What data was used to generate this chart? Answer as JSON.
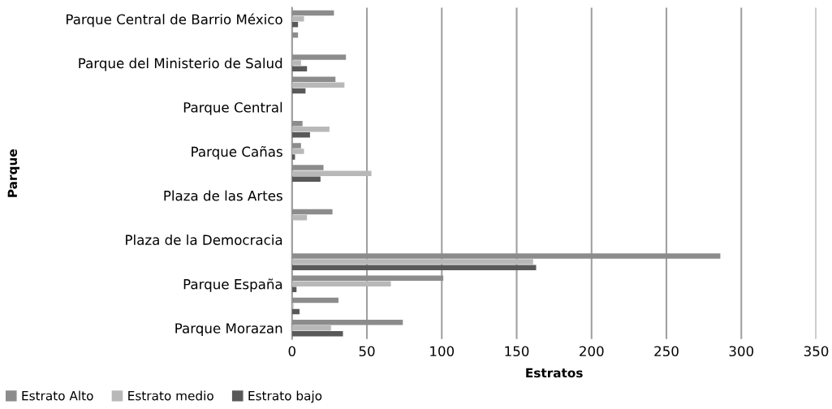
{
  "chart_data": {
    "type": "bar",
    "orientation": "horizontal",
    "xlabel": "Estratos",
    "ylabel": "Parque",
    "categories": [
      "Parque Central de Barrio México",
      null,
      "Parque del Ministerio de Salud",
      null,
      "Parque Central",
      null,
      "Parque Cañas",
      null,
      "Plaza de las Artes",
      null,
      "Plaza de la Democracia",
      null,
      "Parque España",
      null,
      "Parque Morazan"
    ],
    "series": [
      {
        "name": "Estrato Alto",
        "color": "#8c8c8c",
        "values": [
          28,
          4,
          36,
          29,
          0,
          7,
          6,
          21,
          0,
          27,
          0,
          286,
          101,
          31,
          74
        ]
      },
      {
        "name": "Estrato medio",
        "color": "#b8b8b8",
        "values": [
          8,
          0,
          6,
          35,
          0,
          25,
          8,
          53,
          0,
          10,
          0,
          161,
          66,
          1,
          26
        ]
      },
      {
        "name": "Estrato bajo",
        "color": "#595959",
        "values": [
          4,
          0,
          10,
          9,
          0,
          12,
          2,
          19,
          0,
          0,
          0,
          163,
          3,
          5,
          34
        ]
      }
    ],
    "xlim": [
      0,
      350
    ],
    "xticks": [
      0,
      50,
      100,
      150,
      200,
      250,
      300,
      350
    ],
    "grid": "x",
    "legend": "bottom left"
  }
}
